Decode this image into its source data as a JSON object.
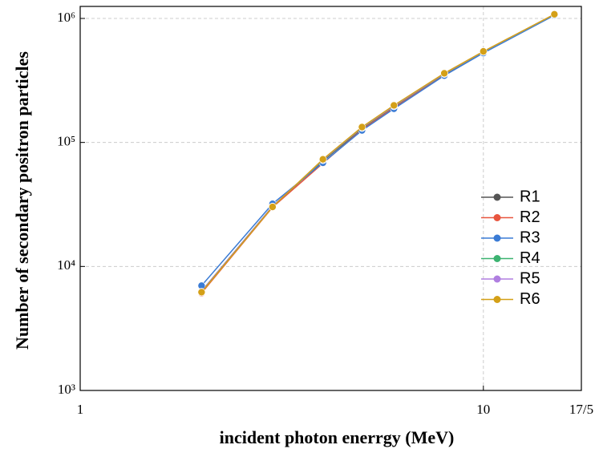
{
  "chart_data": {
    "type": "line",
    "xlabel": "incident photon enerrgy (MeV)",
    "ylabel": "Number of secondary positron particles",
    "x": [
      2,
      3,
      4,
      5,
      6,
      8,
      10,
      15
    ],
    "series": [
      {
        "name": "R1",
        "color": "#555555",
        "values": [
          6300,
          30500,
          71000,
          129000,
          193000,
          352000,
          534000,
          1070000
        ]
      },
      {
        "name": "R2",
        "color": "#e8553f",
        "values": [
          6100,
          30000,
          68000,
          127000,
          190000,
          350000,
          530000,
          1065000
        ]
      },
      {
        "name": "R3",
        "color": "#3a7bd5",
        "values": [
          7000,
          32000,
          68600,
          125000,
          187000,
          346000,
          526000,
          1060000
        ]
      },
      {
        "name": "R4",
        "color": "#3cb371",
        "values": [
          6200,
          30300,
          72000,
          131000,
          196000,
          357000,
          538000,
          1075000
        ]
      },
      {
        "name": "R5",
        "color": "#b07fe0",
        "values": [
          6250,
          30400,
          72500,
          132000,
          197000,
          359000,
          540000,
          1078000
        ]
      },
      {
        "name": "R6",
        "color": "#d4a017",
        "values": [
          6200,
          30200,
          73100,
          133000,
          199000,
          361000,
          542000,
          1080000
        ]
      }
    ],
    "xlim": [
      1,
      17.5
    ],
    "ylim": [
      1000,
      1250000
    ],
    "xticks": [
      1,
      10,
      {
        "value": 17.5,
        "label": "17/5"
      }
    ],
    "yticks": [
      {
        "value": 1000,
        "label": "10³"
      },
      {
        "value": 10000,
        "label": "10⁴"
      },
      {
        "value": 100000,
        "label": "10⁵"
      },
      {
        "value": 1000000,
        "label": "10⁶"
      }
    ],
    "xscale": "log",
    "yscale": "log",
    "grid": true
  }
}
